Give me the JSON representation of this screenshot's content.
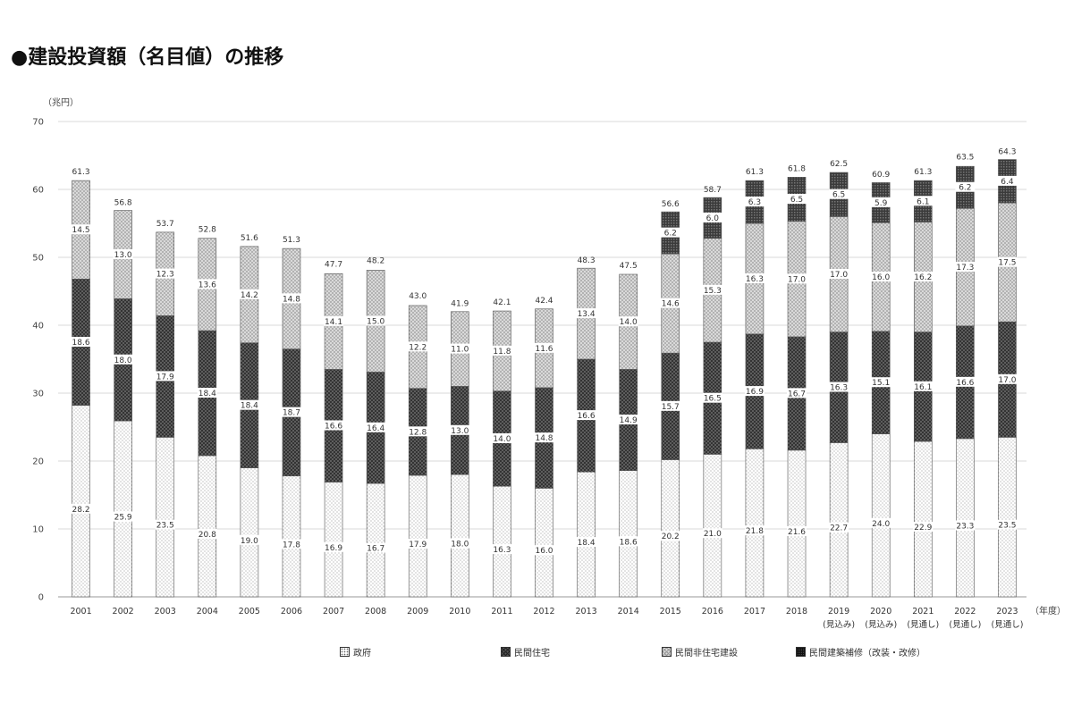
{
  "title": "●建設投資額（名目値）の推移",
  "chart_data": {
    "type": "bar",
    "stacked": true,
    "ylabel": "（兆円）",
    "xlabel": "（年度）",
    "ylim": [
      0,
      70
    ],
    "yticks": [
      "0",
      "10",
      "20",
      "30",
      "40",
      "50",
      "60",
      "70"
    ],
    "grid": true,
    "legend_position": "bottom",
    "categories": [
      "2001",
      "2002",
      "2003",
      "2004",
      "2005",
      "2006",
      "2007",
      "2008",
      "2009",
      "2010",
      "2011",
      "2012",
      "2013",
      "2014",
      "2015",
      "2016",
      "2017",
      "2018",
      "2019",
      "2020",
      "2021",
      "2022",
      "2023"
    ],
    "sublabels": [
      "",
      "",
      "",
      "",
      "",
      "",
      "",
      "",
      "",
      "",
      "",
      "",
      "",
      "",
      "",
      "",
      "",
      "",
      "(見込み)",
      "(見込み)",
      "(見通し)",
      "(見通し)",
      "(見通し)"
    ],
    "series": [
      {
        "name": "政府",
        "values": [
          28.2,
          25.9,
          23.5,
          20.8,
          19.0,
          17.8,
          16.9,
          16.7,
          17.9,
          18.0,
          16.3,
          16.0,
          18.4,
          18.6,
          20.2,
          21.0,
          21.8,
          21.6,
          22.7,
          24.0,
          22.9,
          23.3,
          23.5
        ]
      },
      {
        "name": "民間住宅",
        "values": [
          18.6,
          18.0,
          17.9,
          18.4,
          18.4,
          18.7,
          16.6,
          16.4,
          12.8,
          13.0,
          14.0,
          14.8,
          16.6,
          14.9,
          15.7,
          16.5,
          16.9,
          16.7,
          16.3,
          15.1,
          16.1,
          16.6,
          17.0
        ]
      },
      {
        "name": "民間非住宅建設",
        "values": [
          14.5,
          13.0,
          12.3,
          13.6,
          14.2,
          14.8,
          14.1,
          15.0,
          12.2,
          11.0,
          11.8,
          11.6,
          13.4,
          14.0,
          14.6,
          15.3,
          16.3,
          17.0,
          17.0,
          16.0,
          16.2,
          17.3,
          17.5
        ]
      },
      {
        "name": "民間建築補修（改装・改修）",
        "values": [
          null,
          null,
          null,
          null,
          null,
          null,
          null,
          null,
          null,
          null,
          null,
          null,
          null,
          null,
          6.2,
          6.0,
          6.3,
          6.5,
          6.5,
          5.9,
          6.1,
          6.2,
          6.4
        ]
      }
    ],
    "totals": [
      61.3,
      56.8,
      53.7,
      52.8,
      51.6,
      51.3,
      47.7,
      48.2,
      43.0,
      41.9,
      42.1,
      42.4,
      48.3,
      47.5,
      56.6,
      58.7,
      61.3,
      61.8,
      62.5,
      60.9,
      61.3,
      63.5,
      64.3
    ]
  }
}
